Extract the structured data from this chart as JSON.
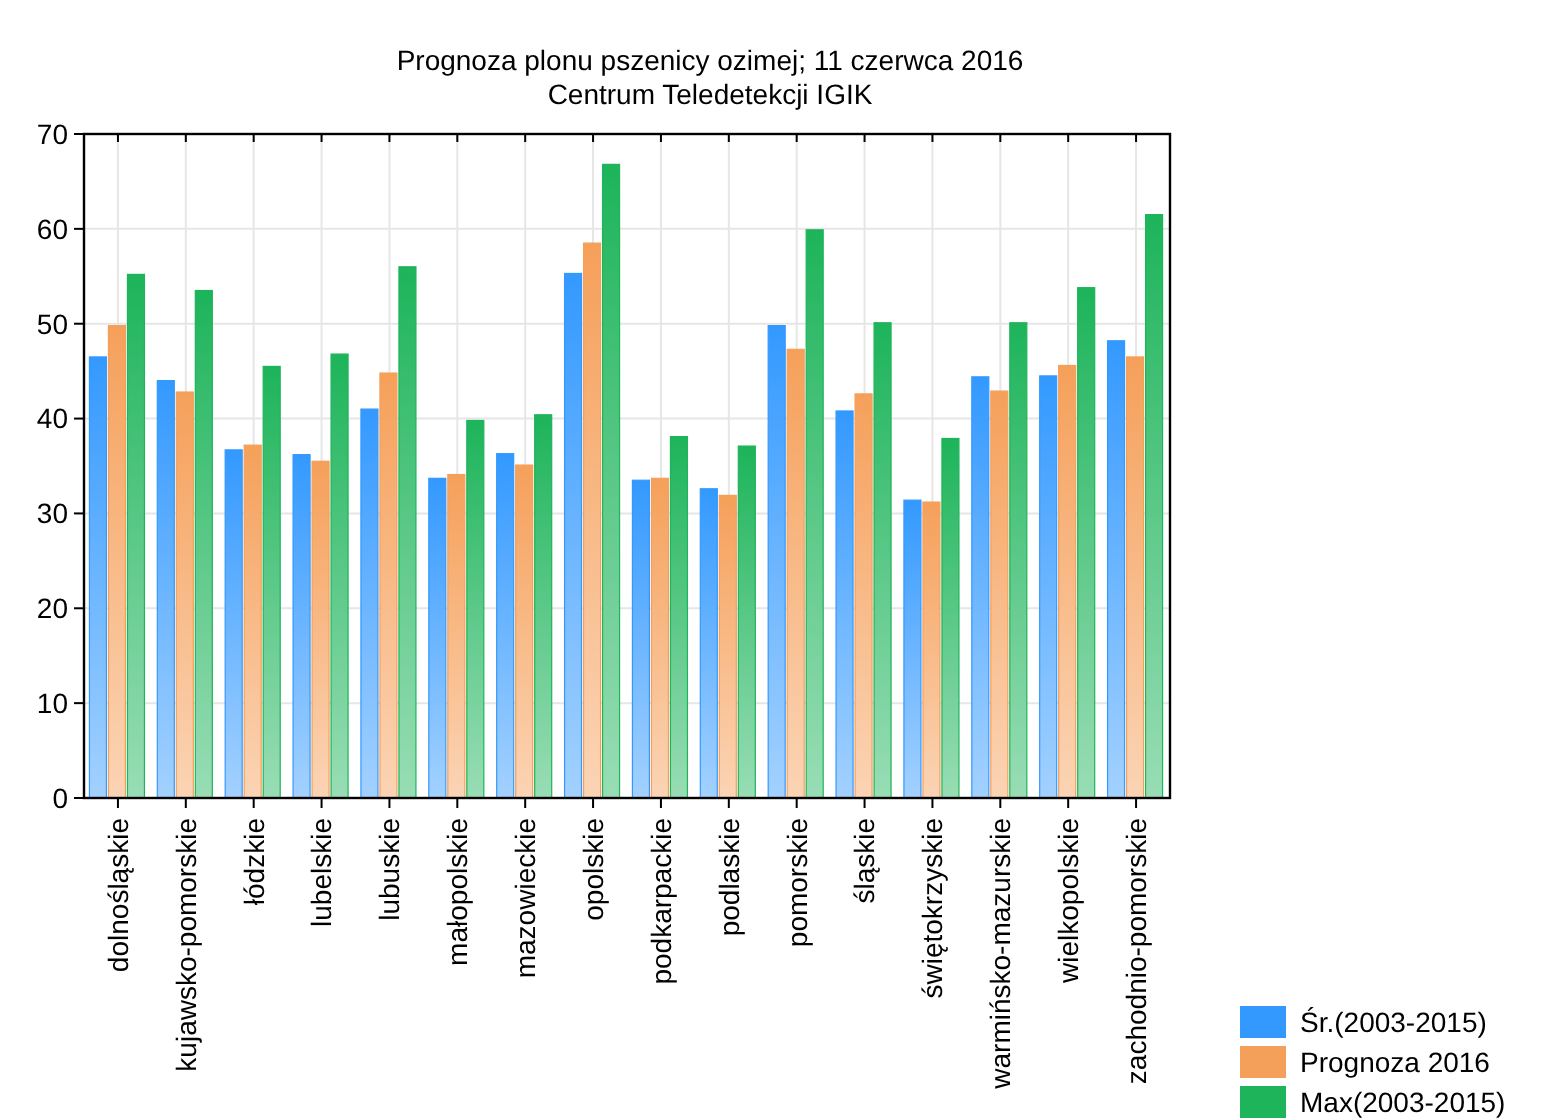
{
  "chart_data": {
    "type": "bar",
    "title": "Prognoza plonu pszenicy ozimej; 11 czerwca 2016",
    "subtitle": "Centrum Teledetekcji IGIK",
    "categories": [
      "dolnośląskie",
      "kujawsko-pomorskie",
      "łódzkie",
      "lubelskie",
      "lubuskie",
      "małopolskie",
      "mazowieckie",
      "opolskie",
      "podkarpackie",
      "podlaskie",
      "pomorskie",
      "śląskie",
      "świętokrzyskie",
      "warmińsko-mazurskie",
      "wielkopolskie",
      "zachodnio-pomorskie"
    ],
    "series": [
      {
        "name": "Śr.(2003-2015)",
        "color": "#3399ff",
        "values": [
          46.5,
          44,
          36.7,
          36.2,
          41,
          33.7,
          36.3,
          55.3,
          33.5,
          32.6,
          49.8,
          40.8,
          31.4,
          44.4,
          44.5,
          48.2
        ]
      },
      {
        "name": "Prognoza 2016",
        "color": "#f5a05a",
        "values": [
          49.8,
          42.8,
          37.2,
          35.5,
          44.8,
          34.1,
          35.1,
          58.5,
          33.7,
          31.9,
          47.3,
          42.6,
          31.2,
          42.9,
          45.6,
          46.5
        ]
      },
      {
        "name": "Max(2003-2015)",
        "color": "#1db45a",
        "values": [
          55.2,
          53.5,
          45.5,
          46.8,
          56,
          39.8,
          40.4,
          66.8,
          38.1,
          37.1,
          59.9,
          50.1,
          37.9,
          50.1,
          53.8,
          61.5
        ]
      }
    ],
    "ylim": [
      0,
      70
    ],
    "yticks": [
      0,
      10,
      20,
      30,
      40,
      50,
      60,
      70
    ],
    "grid": true,
    "legend": "bottom right"
  }
}
